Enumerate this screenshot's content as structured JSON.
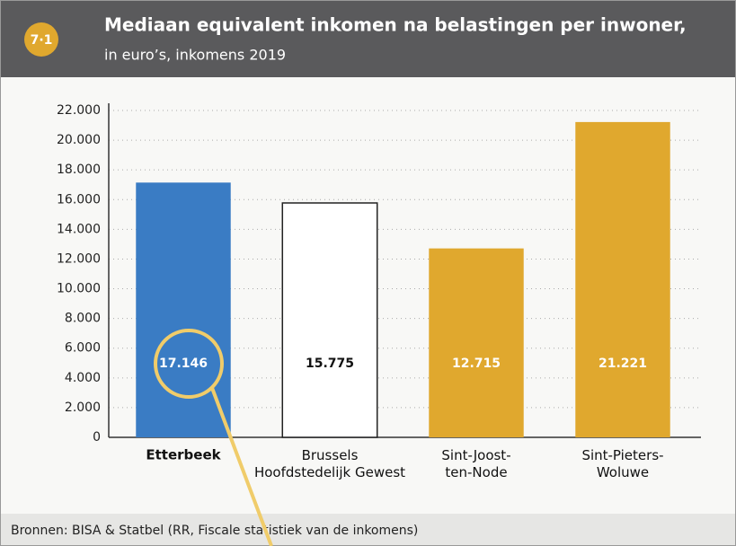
{
  "badge": "7·1",
  "chart_data": {
    "type": "bar",
    "title": "Mediaan equivalent inkomen na belastingen per inwoner,",
    "subtitle": "in euro’s, inkomens 2019",
    "categories": [
      "Etterbeek",
      "Brussels\nHoofdstedelijk Gewest",
      "Sint-Joost-\nten-Node",
      "Sint-Pieters-\nWoluwe"
    ],
    "values": [
      17146,
      15775,
      12715,
      21221
    ],
    "value_labels": [
      "17.146",
      "15.775",
      "12.715",
      "21.221"
    ],
    "colors": [
      "#3a7cc4",
      "#ffffff",
      "#e0a82e",
      "#e0a82e"
    ],
    "highlight": 0,
    "ylim": [
      0,
      22000
    ],
    "yticks": [
      0,
      {
        "value": 2000,
        "label": "2.000"
      },
      {
        "value": 4000,
        "label": "4.000"
      },
      {
        "value": 6000,
        "label": "6.000"
      },
      {
        "value": 8000,
        "label": "8.000"
      },
      {
        "value": 10000,
        "label": "10.000"
      },
      {
        "value": 12000,
        "label": "12.000"
      },
      {
        "value": 14000,
        "label": "14.000"
      },
      {
        "value": 16000,
        "label": "16.000"
      },
      {
        "value": 18000,
        "label": "18.000"
      },
      {
        "value": 20000,
        "label": "20.000"
      },
      {
        "value": 22000,
        "label": "22.000"
      }
    ],
    "grid": true
  },
  "source": "Bronnen: BISA & Statbel (RR, Fiscale statistiek van de inkomens)"
}
